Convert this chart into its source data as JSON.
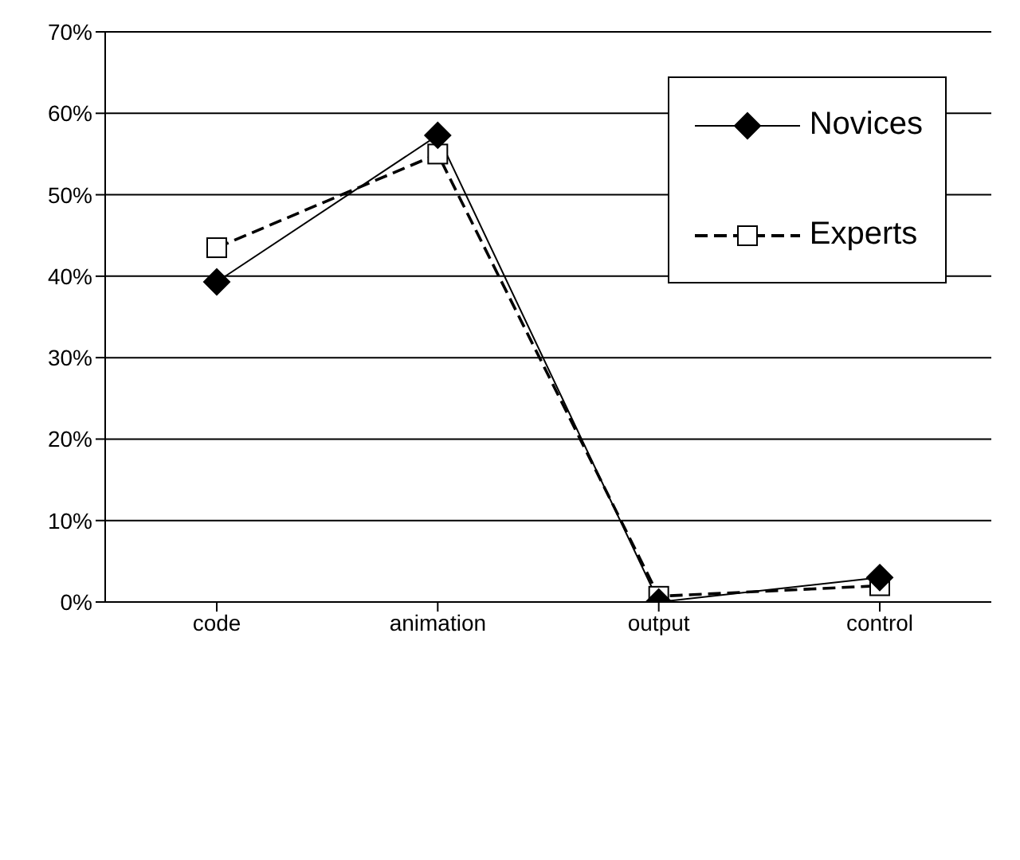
{
  "chart_data": {
    "type": "line",
    "categories": [
      "code",
      "animation",
      "output",
      "control"
    ],
    "series": [
      {
        "name": "Novices",
        "color": "#000000",
        "marker": "diamond",
        "line_style": "solid",
        "values": [
          39.3,
          57.3,
          0,
          3
        ]
      },
      {
        "name": "Experts",
        "color": "#000000",
        "marker": "square",
        "line_style": "dashed",
        "values": [
          43.5,
          55,
          0.7,
          2
        ]
      }
    ],
    "ylim": [
      0,
      70
    ],
    "yticks": [
      {
        "value": 0,
        "label": "0%"
      },
      {
        "value": 10,
        "label": "10%"
      },
      {
        "value": 20,
        "label": "20%"
      },
      {
        "value": 30,
        "label": "30%"
      },
      {
        "value": 40,
        "label": "40%"
      },
      {
        "value": 50,
        "label": "50%"
      },
      {
        "value": 60,
        "label": "60%"
      },
      {
        "value": 70,
        "label": "70%"
      }
    ],
    "grid": "y",
    "legend": "top right"
  }
}
